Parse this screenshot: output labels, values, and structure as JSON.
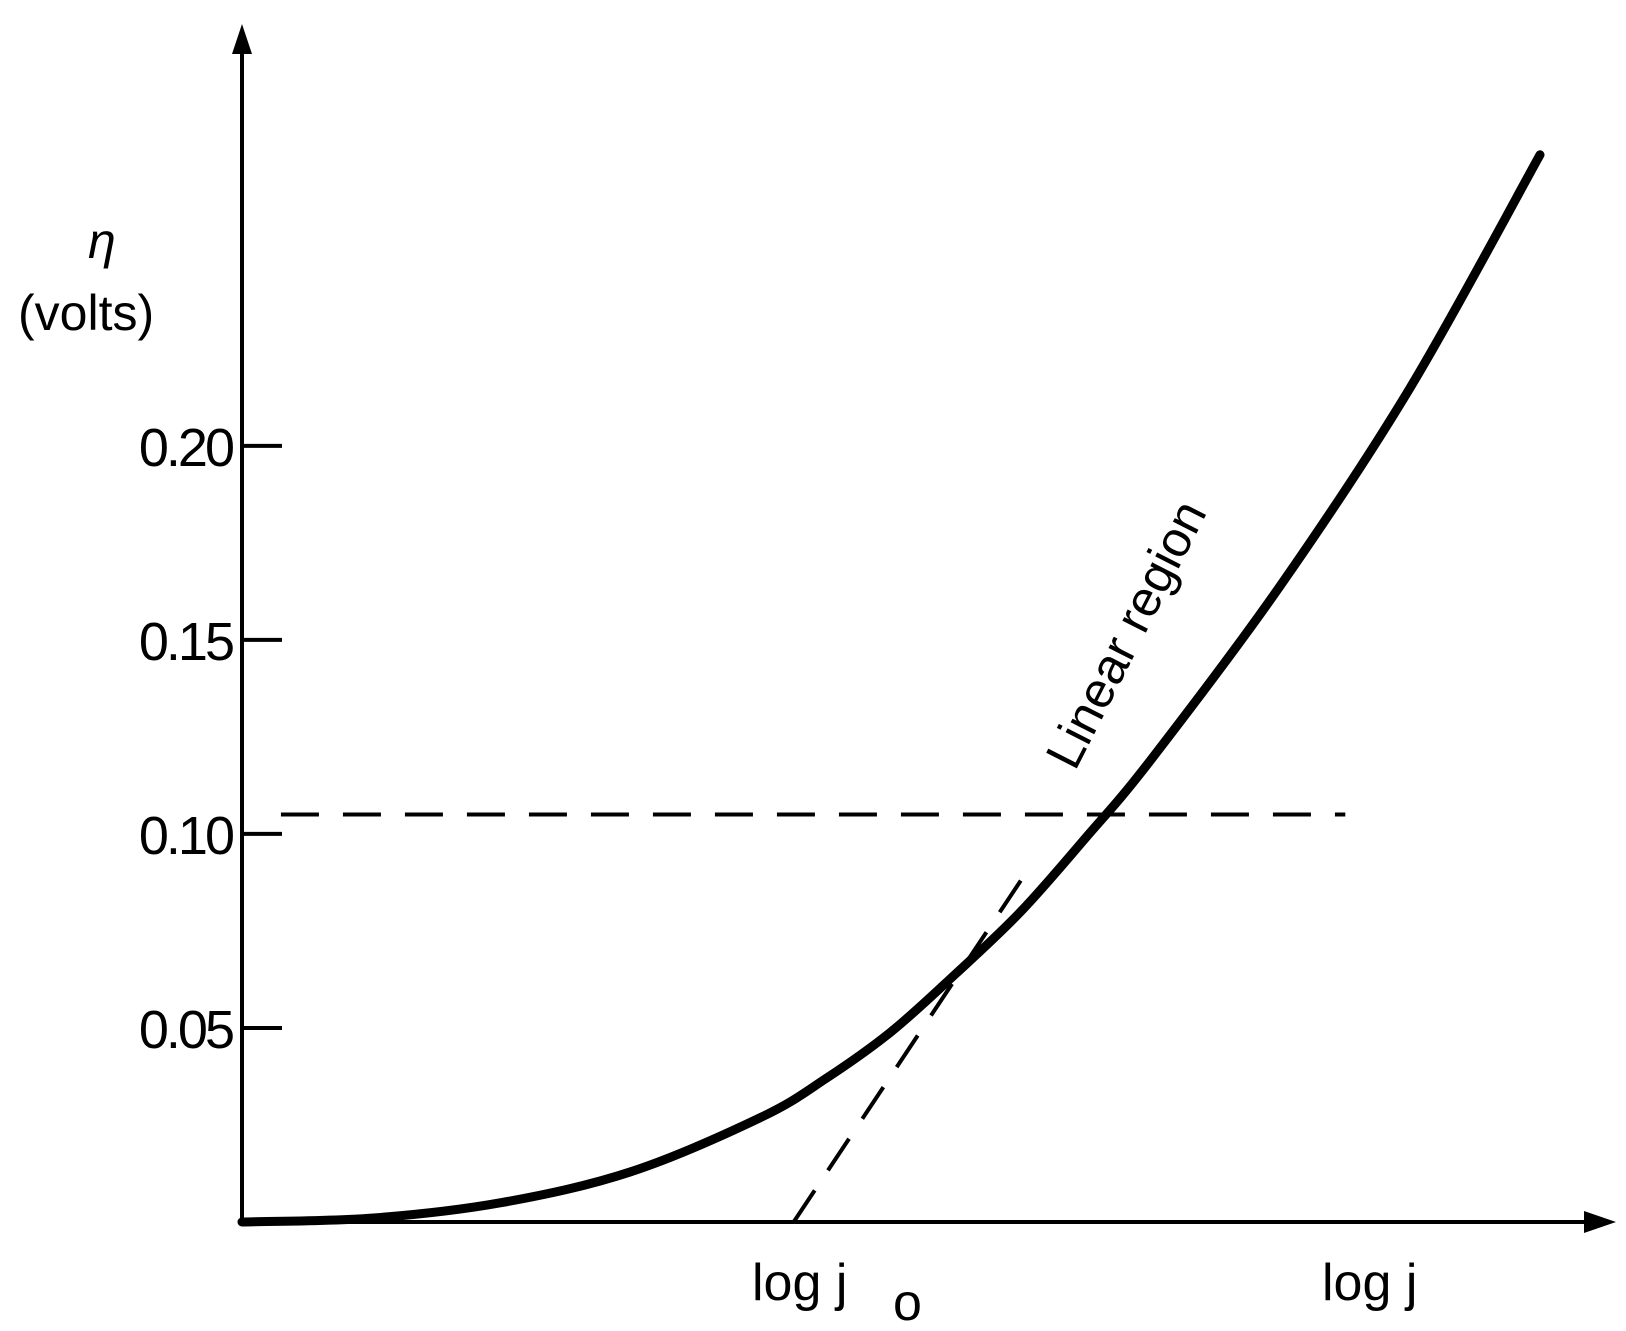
{
  "chart_data": {
    "type": "line",
    "title": "",
    "ylabel_symbol": "η",
    "ylabel_unit": "(volts)",
    "xlabel": "log j",
    "x_marker_label_main": "log j",
    "x_marker_label_sub": "o",
    "ylim": [
      0,
      0.285
    ],
    "xlim": [
      0,
      10
    ],
    "y_ticks": [
      {
        "value": 0.05,
        "label": "0.05"
      },
      {
        "value": 0.1,
        "label": "0.10"
      },
      {
        "value": 0.15,
        "label": "0.15"
      },
      {
        "value": 0.2,
        "label": "0.20"
      }
    ],
    "series": [
      {
        "style": "solid",
        "x": [
          0,
          1,
          2,
          3,
          4,
          4.5,
          5,
          5.5,
          6,
          6.5,
          7,
          8,
          9,
          10
        ],
        "y": [
          0,
          0.001,
          0.005,
          0.013,
          0.027,
          0.037,
          0.049,
          0.064,
          0.08,
          0.099,
          0.119,
          0.164,
          0.215,
          0.275
        ]
      },
      {
        "style": "dashed",
        "label": "Linear region",
        "x": [
          4.25,
          6.06
        ],
        "y": [
          0,
          0.091
        ]
      },
      {
        "style": "dashed",
        "x": [
          0.3,
          8.5
        ],
        "y": [
          0.105,
          0.105
        ]
      }
    ],
    "annotation": "Linear region",
    "grid": false,
    "legend": "none"
  }
}
